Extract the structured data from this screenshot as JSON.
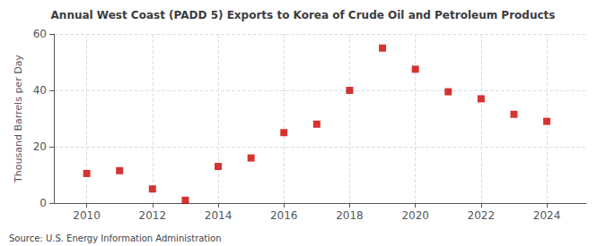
{
  "chart_data": {
    "type": "scatter",
    "title": "Annual West Coast (PADD 5) Exports to Korea of Crude Oil and Petroleum Products",
    "ylabel": "Thousand Barrels per Day",
    "annotations": [
      "Source: U.S. Energy Information Administration"
    ],
    "x": [
      2010,
      2011,
      2012,
      2013,
      2014,
      2015,
      2016,
      2017,
      2018,
      2019,
      2020,
      2021,
      2022,
      2023,
      2024
    ],
    "values": [
      10.5,
      11.5,
      5.0,
      1.0,
      13.0,
      16.0,
      25.0,
      28.0,
      40.0,
      55.0,
      47.5,
      39.5,
      37.0,
      31.5,
      29.0
    ],
    "color": "#cc0000",
    "marker": "square",
    "xlim": [
      2009.0,
      2025.2
    ],
    "xticks": [
      2010,
      2012,
      2014,
      2016,
      2018,
      2020,
      2022,
      2024
    ],
    "ylim": [
      0,
      60
    ],
    "yticks": [
      0,
      20,
      40,
      60
    ],
    "grid": true
  }
}
